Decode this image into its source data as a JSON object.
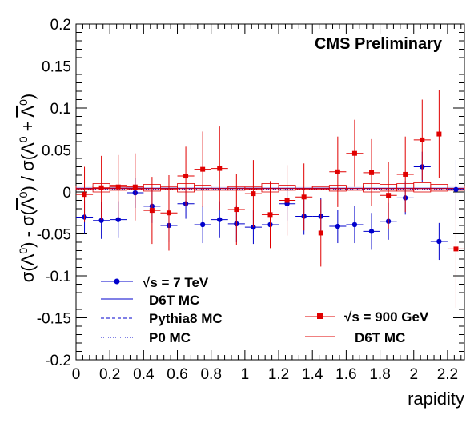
{
  "chart_data": {
    "type": "scatter",
    "annotation": "CMS Preliminary",
    "xlabel": "rapidity",
    "ylabel_parts": [
      "σ(Λ",
      "0",
      ") - σ(",
      "Λ",
      "0",
      ") / σ(Λ",
      "0",
      " + ",
      "Λ",
      "0",
      ")"
    ],
    "xlim": [
      0,
      2.3
    ],
    "ylim": [
      -0.2,
      0.2
    ],
    "x_ticks": [
      0,
      0.2,
      0.4,
      0.6,
      0.8,
      1,
      1.2,
      1.4,
      1.6,
      1.8,
      2,
      2.2
    ],
    "x_tick_labels": [
      "0",
      "0.2",
      "0.4",
      "0.6",
      "0.8",
      "1",
      "1.2",
      "1.4",
      "1.6",
      "1.8",
      "2",
      "2.2"
    ],
    "y_ticks": [
      -0.2,
      -0.15,
      -0.1,
      -0.05,
      0,
      0.05,
      0.1,
      0.15,
      0.2
    ],
    "y_tick_labels": [
      "-0.2",
      "-0.15",
      "-0.1",
      "-0.05",
      "0",
      "0.05",
      "0.1",
      "0.15",
      "0.2"
    ],
    "series": [
      {
        "name_prefix": "√s",
        "name_suffix": " = 7 TeV",
        "color": "#0000cc",
        "marker": "circle",
        "x": [
          0.05,
          0.15,
          0.25,
          0.35,
          0.45,
          0.55,
          0.65,
          0.75,
          0.85,
          0.95,
          1.05,
          1.15,
          1.25,
          1.35,
          1.45,
          1.55,
          1.65,
          1.75,
          1.85,
          1.95,
          2.05,
          2.15,
          2.25
        ],
        "y": [
          -0.03,
          -0.034,
          -0.033,
          -0.001,
          -0.017,
          -0.04,
          -0.014,
          -0.039,
          -0.033,
          -0.038,
          -0.042,
          -0.039,
          -0.014,
          -0.029,
          -0.029,
          -0.041,
          -0.039,
          -0.047,
          -0.035,
          -0.007,
          0.03,
          -0.059,
          0.003
        ],
        "err": [
          0.02,
          0.022,
          0.022,
          0.018,
          0.02,
          0.02,
          0.018,
          0.022,
          0.022,
          0.022,
          0.02,
          0.018,
          0.02,
          0.022,
          0.022,
          0.02,
          0.022,
          0.022,
          0.022,
          0.02,
          0.018,
          0.022,
          0.035
        ]
      },
      {
        "name_prefix": "√s",
        "name_suffix": " = 900 GeV",
        "color": "#e00000",
        "marker": "square",
        "x": [
          0.05,
          0.15,
          0.25,
          0.35,
          0.45,
          0.55,
          0.65,
          0.75,
          0.85,
          0.95,
          1.05,
          1.15,
          1.25,
          1.35,
          1.45,
          1.55,
          1.65,
          1.75,
          1.85,
          1.95,
          2.05,
          2.15,
          2.25
        ],
        "y": [
          -0.003,
          0.005,
          0.006,
          0.006,
          -0.022,
          -0.025,
          0.019,
          0.027,
          0.028,
          -0.021,
          -0.002,
          -0.027,
          -0.01,
          -0.006,
          -0.049,
          0.024,
          0.046,
          0.023,
          -0.004,
          0.021,
          0.062,
          0.069,
          -0.068
        ],
        "err": [
          0.033,
          0.038,
          0.038,
          0.04,
          0.04,
          0.045,
          0.035,
          0.045,
          0.05,
          0.042,
          0.04,
          0.04,
          0.042,
          0.04,
          0.04,
          0.042,
          0.04,
          0.04,
          0.04,
          0.045,
          0.048,
          0.052,
          0.07
        ]
      }
    ],
    "mc_7tev": [
      {
        "name": "D6T MC",
        "style": "solid",
        "color": "#0000cc",
        "y": 0.0045
      },
      {
        "name": "Pythia8 MC",
        "style": "dashed",
        "color": "#0000cc",
        "y": 0.0025
      },
      {
        "name": "P0 MC",
        "style": "dotted",
        "color": "#0000cc",
        "y": 0.0035
      }
    ],
    "mc_900": {
      "name": "D6T MC",
      "color": "#e00000",
      "base": 0.004,
      "box_hi": [
        0.007,
        0.01,
        0.008,
        0.006,
        0.009,
        0.006,
        0.01,
        0.008,
        0.007,
        0.006,
        0.006,
        0.01,
        0.008,
        0.007,
        0.006,
        0.008,
        0.007,
        0.01,
        0.009,
        0.01,
        0.011,
        0.009,
        0.007
      ],
      "box_lo": [
        0.003,
        0.0,
        0.002,
        0.003,
        0.001,
        0.003,
        0.0,
        0.002,
        0.002,
        0.002,
        0.003,
        0.0,
        0.002,
        0.003,
        0.003,
        0.001,
        0.002,
        0.0,
        0.001,
        0.001,
        0.0,
        0.001,
        0.002
      ]
    }
  }
}
